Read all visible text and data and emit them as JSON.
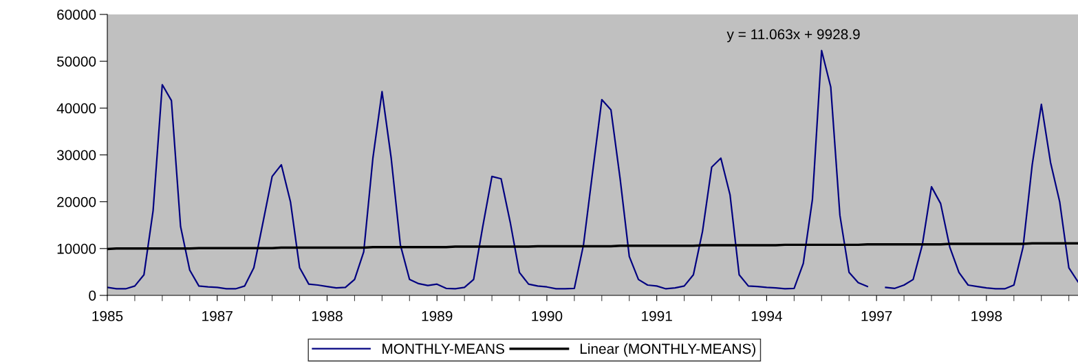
{
  "chart_data": {
    "type": "line",
    "categories": [
      "1985",
      null,
      null,
      null,
      null,
      null,
      null,
      null,
      null,
      null,
      null,
      null,
      "1987",
      null,
      null,
      null,
      null,
      null,
      null,
      null,
      null,
      null,
      null,
      null,
      "1988",
      null,
      null,
      null,
      null,
      null,
      null,
      null,
      null,
      null,
      null,
      null,
      "1989",
      null,
      null,
      null,
      null,
      null,
      null,
      null,
      null,
      null,
      null,
      null,
      "1990",
      null,
      null,
      null,
      null,
      null,
      null,
      null,
      null,
      null,
      null,
      null,
      "1991",
      null,
      null,
      null,
      null,
      null,
      null,
      null,
      null,
      null,
      null,
      null,
      "1994",
      null,
      null,
      null,
      null,
      null,
      null,
      null,
      null,
      null,
      null,
      null,
      "1997",
      null,
      null,
      null,
      null,
      null,
      null,
      null,
      null,
      null,
      null,
      null,
      "1998",
      null,
      null,
      null,
      null,
      null,
      null,
      null,
      null,
      null,
      null
    ],
    "series": [
      {
        "name": "MONTHLY-MEANS",
        "color": "#000080",
        "values": [
          1700,
          1400,
          1400,
          2000,
          4400,
          18100,
          45000,
          41600,
          14700,
          5400,
          2000,
          1800,
          1700,
          1400,
          1400,
          2000,
          5900,
          15600,
          25400,
          27900,
          20000,
          5900,
          2400,
          2200,
          1900,
          1600,
          1700,
          3400,
          9300,
          29300,
          43500,
          29300,
          10800,
          3400,
          2500,
          2100,
          2400,
          1500,
          1400,
          1700,
          3400,
          14700,
          25400,
          24900,
          15600,
          4900,
          2400,
          2000,
          1800,
          1400,
          1400,
          1500,
          10800,
          26400,
          41800,
          39600,
          24900,
          8300,
          3400,
          2200,
          2000,
          1400,
          1600,
          2000,
          4400,
          13700,
          27400,
          29300,
          21500,
          4400,
          2000,
          1900,
          1700,
          1600,
          1400,
          1500,
          6800,
          20500,
          52300,
          44500,
          17100,
          4900,
          2700,
          1900,
          null,
          1700,
          1500,
          2200,
          3400,
          10800,
          23200,
          19600,
          10300,
          4900,
          2200,
          1900,
          1600,
          1400,
          1400,
          2200,
          10300,
          27900,
          40800,
          28400,
          20000,
          5900,
          2900
        ]
      },
      {
        "name": "Linear (MONTHLY-MEANS)",
        "color": "#000000",
        "values": [
          9900,
          10000,
          10000,
          10000,
          10000,
          10000,
          10000,
          10000,
          10000,
          10000,
          10100,
          10100,
          10100,
          10100,
          10100,
          10100,
          10100,
          10100,
          10100,
          10200,
          10200,
          10200,
          10200,
          10200,
          10200,
          10200,
          10200,
          10200,
          10200,
          10300,
          10300,
          10300,
          10300,
          10300,
          10300,
          10300,
          10300,
          10300,
          10400,
          10400,
          10400,
          10400,
          10400,
          10400,
          10400,
          10400,
          10400,
          10500,
          10500,
          10500,
          10500,
          10500,
          10500,
          10500,
          10500,
          10500,
          10600,
          10600,
          10600,
          10600,
          10600,
          10600,
          10600,
          10600,
          10600,
          10700,
          10700,
          10700,
          10700,
          10700,
          10700,
          10700,
          10700,
          10700,
          10800,
          10800,
          10800,
          10800,
          10800,
          10800,
          10800,
          10800,
          10800,
          10900,
          10900,
          10900,
          10900,
          10900,
          10900,
          10900,
          10900,
          10900,
          11000,
          11000,
          11000,
          11000,
          11000,
          11000,
          11000,
          11000,
          11000,
          11100,
          11100,
          11100,
          11100,
          11100,
          11100
        ]
      }
    ],
    "annotations": [
      "y = 11.063x + 9928.9"
    ],
    "ylim": [
      0,
      60000
    ],
    "yticks": [
      0,
      10000,
      20000,
      30000,
      40000,
      50000,
      60000
    ],
    "grid": false,
    "legend": "bottom",
    "marker": "none",
    "line_style": "solid"
  }
}
